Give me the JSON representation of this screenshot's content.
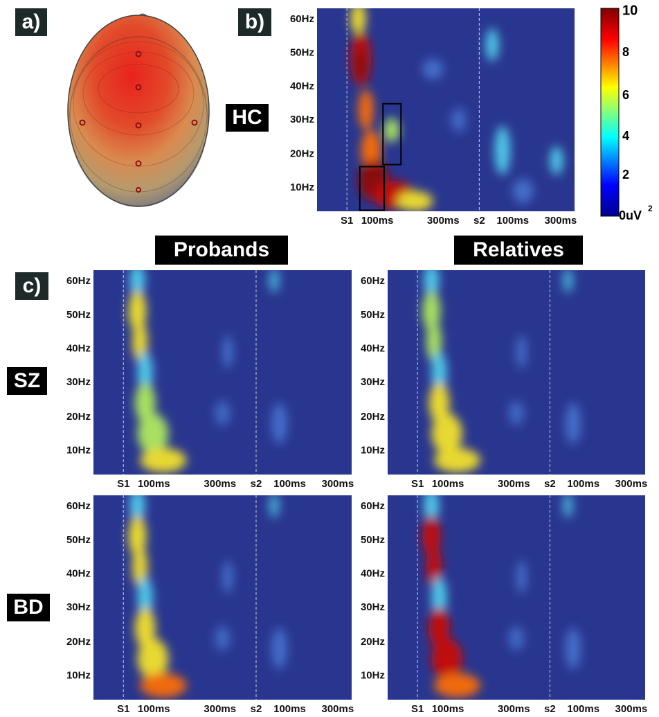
{
  "panel_labels": [
    "a)",
    "b)",
    "c)"
  ],
  "group_labels": {
    "hc": "HC",
    "sz": "SZ",
    "bd": "BD"
  },
  "column_titles": [
    "Probands",
    "Relatives"
  ],
  "y_tick_labels": [
    "60Hz",
    "50Hz",
    "40Hz",
    "30Hz",
    "20Hz",
    "10Hz"
  ],
  "x_tick_labels": [
    "S1",
    "100ms",
    "300ms",
    "s2",
    "100ms",
    "300ms"
  ],
  "colorbar": {
    "labels": [
      "10",
      "8",
      "6",
      "4",
      "2"
    ],
    "unit_label": "0uV",
    "unit_superscript": "2"
  }
}
